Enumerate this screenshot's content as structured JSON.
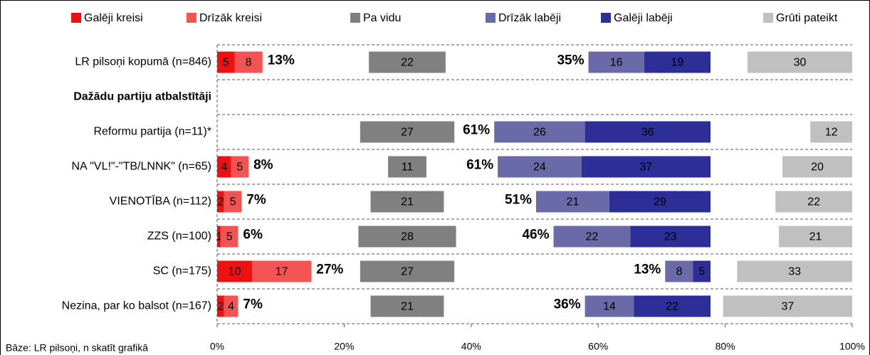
{
  "chart_data": {
    "type": "diverging_bar",
    "categories": [
      "LR pilsoņi kopumā (n=846)",
      "Dažādu partiju atbalstītāji",
      "Reformu partija (n=11)*",
      "NA \"VL!\"-\"TB/LNNK\" (n=65)",
      "VIENOTĪBA (n=112)",
      "ZZS (n=100)",
      "SC (n=175)",
      "Nezina, par ko balsot (n=167)"
    ],
    "series": [
      {
        "name": "Galēji kreisi",
        "color": "#ee1111",
        "values": [
          5,
          null,
          null,
          4,
          2,
          1,
          10,
          2
        ]
      },
      {
        "name": "Drīzāk kreisi",
        "color": "#f25454",
        "values": [
          8,
          null,
          null,
          5,
          5,
          5,
          17,
          4
        ]
      },
      {
        "name": "Pa vidu",
        "color": "#808080",
        "values": [
          22,
          null,
          27,
          11,
          21,
          28,
          27,
          21
        ]
      },
      {
        "name": "Drīzāk labēji",
        "color": "#6a6aa8",
        "values": [
          16,
          null,
          26,
          24,
          21,
          22,
          8,
          14
        ]
      },
      {
        "name": "Galēji labēji",
        "color": "#2e2e98",
        "values": [
          19,
          null,
          36,
          37,
          29,
          23,
          5,
          22
        ]
      },
      {
        "name": "Grūti pateikt",
        "color": "#c0c0c0",
        "values": [
          30,
          null,
          12,
          20,
          22,
          21,
          33,
          37
        ]
      }
    ],
    "left_totals": {
      "color": "#ee1111",
      "values": [
        13,
        null,
        null,
        8,
        7,
        6,
        27,
        7
      ],
      "value_labels": [
        "13%",
        null,
        null,
        "8%",
        "7%",
        "6%",
        "27%",
        "7%"
      ]
    },
    "right_totals": {
      "color": "#1a1a80",
      "values": [
        35,
        null,
        61,
        61,
        51,
        46,
        13,
        36
      ],
      "value_labels": [
        "35%",
        null,
        "61%",
        "61%",
        "51%",
        "46%",
        "13%",
        "36%"
      ]
    },
    "xlim": [
      0,
      100
    ],
    "xticks": [
      {
        "value": 0,
        "label": "0%"
      },
      {
        "value": 20,
        "label": "20%"
      },
      {
        "value": 40,
        "label": "40%"
      },
      {
        "value": 60,
        "label": "60%"
      },
      {
        "value": 80,
        "label": "80%"
      },
      {
        "value": 100,
        "label": "100%"
      }
    ],
    "footnote": "Bāze: LR pilsoņi, n skatīt grafikā",
    "legend": "top"
  }
}
